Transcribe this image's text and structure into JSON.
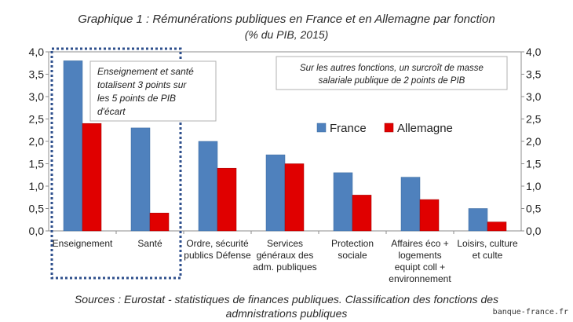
{
  "title_line1": "Graphique 1 : Rémunérations publiques en France et  en Allemagne par fonction",
  "title_line2": "(% du PIB, 2015)",
  "source_line1": "Sources : Eurostat - statistiques de finances publiques. Classification des fonctions des",
  "source_line2": "admnistrations publiques",
  "credit": "banque-france.fr",
  "colors": {
    "france": "#4f81bd",
    "allemagne": "#e00000",
    "dotted_box": "#2e4f8c"
  },
  "chart_data": {
    "type": "bar",
    "categories": [
      [
        "Enseignement"
      ],
      [
        "Santé"
      ],
      [
        "Ordre, sécurité",
        "publics  Défense"
      ],
      [
        "Services",
        "généraux des",
        "adm. publiques"
      ],
      [
        "Protection",
        "sociale"
      ],
      [
        "Affaires éco +",
        "logements",
        "equipt coll +",
        "environnement"
      ],
      [
        "Loisirs, culture",
        "et culte"
      ]
    ],
    "series": [
      {
        "name": "France",
        "values": [
          3.8,
          2.3,
          2.0,
          1.7,
          1.3,
          1.2,
          0.5
        ]
      },
      {
        "name": "Allemagne",
        "values": [
          2.4,
          0.4,
          1.4,
          1.5,
          0.8,
          0.7,
          0.2
        ]
      }
    ],
    "ylim": [
      0,
      4
    ],
    "yticks": [
      "0,0",
      "0,5",
      "1,0",
      "1,5",
      "2,0",
      "2,5",
      "3,0",
      "3,5",
      "4,0"
    ],
    "secondary_axis": true,
    "legend_position": "middle-right",
    "annotations": [
      [
        "Enseignement et santé",
        "totalisent 3 points sur",
        "les 5 points de PIB",
        "d'écart"
      ],
      [
        "Sur les autres fonctions, un surcroît de masse",
        "salariale publique de 2 points de PIB"
      ]
    ]
  }
}
